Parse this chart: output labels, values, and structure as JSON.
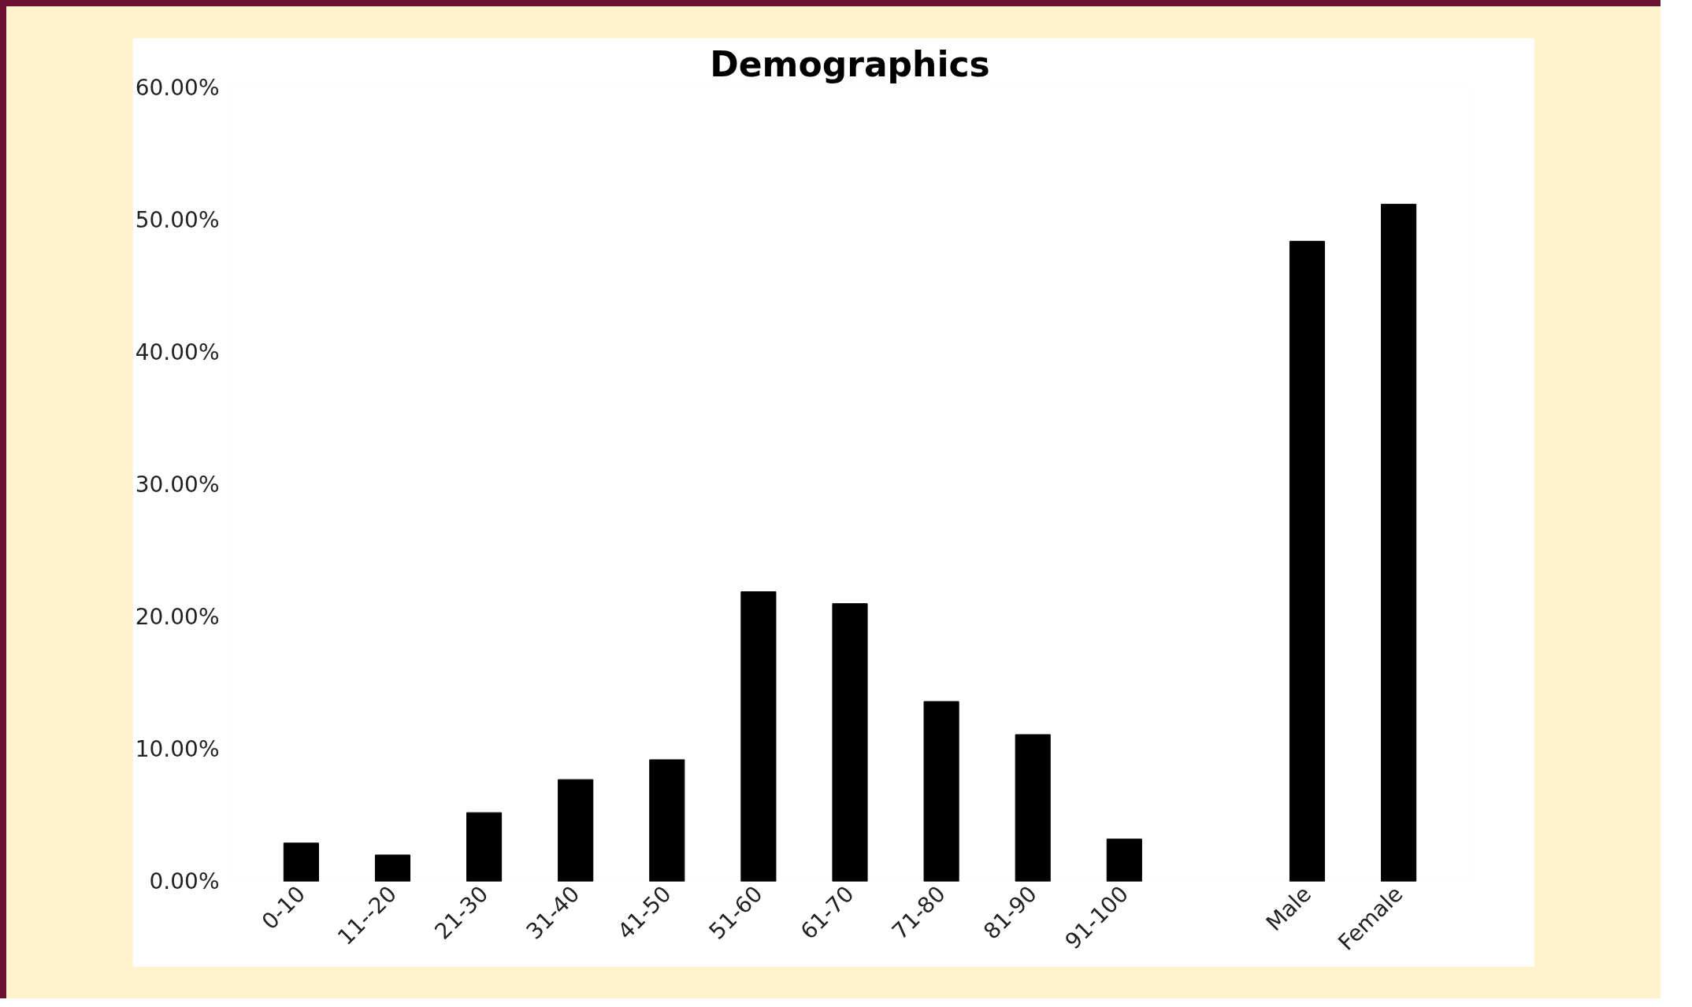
{
  "chart_data": {
    "type": "bar",
    "title": "Demographics",
    "categories": [
      "0-10",
      "11--20",
      "21-30",
      "31-40",
      "41-50",
      "51-60",
      "61-70",
      "71-80",
      "81-90",
      "91-100",
      null,
      "Male",
      "Female"
    ],
    "values": [
      2.9,
      2.0,
      5.2,
      7.7,
      9.2,
      21.9,
      21.0,
      13.6,
      11.1,
      3.2,
      null,
      48.4,
      51.2
    ],
    "color": "#000000",
    "ylim": [
      0,
      60
    ],
    "yticks": [
      {
        "value": 0,
        "label": "0.00%"
      },
      {
        "value": 10,
        "label": "10.00%"
      },
      {
        "value": 20,
        "label": "20.00%"
      },
      {
        "value": 30,
        "label": "30.00%"
      },
      {
        "value": 40,
        "label": "40.00%"
      },
      {
        "value": 50,
        "label": "50.00%"
      },
      {
        "value": 60,
        "label": "60.00%"
      }
    ],
    "grid": false
  }
}
